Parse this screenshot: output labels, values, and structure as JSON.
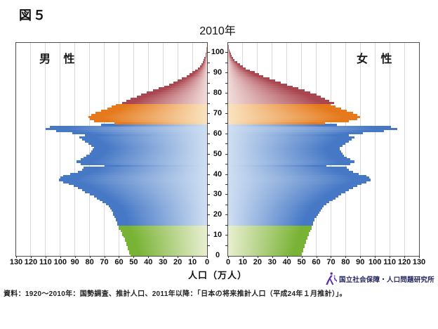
{
  "page": {
    "figure_label": "図５",
    "source_note": "資料：1920～2010年：国勢調査、推計人口、2011年以降：「日本の将来推計人口（平成24年１月推計）」。",
    "logo_text": "国立社会保障・人口問題研究所",
    "logo_icon": "person-logo-icon"
  },
  "colors": {
    "grid": "#d9d9d9",
    "axis": "#4d4d4d",
    "logo_purple": "#5b2da6",
    "logo_text_navy": "#23275f"
  },
  "chart_data": {
    "type": "bar",
    "variant": "population-pyramid-horizontal",
    "title": "2010年",
    "xlabel": "人口（万人）",
    "left_series_label": "男 性",
    "right_series_label": "女 性",
    "x_max": 130,
    "x_ticks_left": [
      130,
      120,
      110,
      100,
      90,
      80,
      70,
      60,
      50,
      40,
      30,
      20,
      10,
      0
    ],
    "x_ticks_right": [
      0,
      10,
      20,
      30,
      40,
      50,
      60,
      70,
      80,
      90,
      100,
      110,
      120,
      130
    ],
    "age_axis": {
      "min": 0,
      "max": 105,
      "tick_step": 5,
      "labels": [
        0,
        10,
        20,
        30,
        40,
        50,
        60,
        70,
        80,
        90,
        100
      ]
    },
    "grid": true,
    "age_bands": [
      {
        "name": "0-14",
        "from": 0,
        "to": 14,
        "dark": "#79b335",
        "pale": "#e9efd1"
      },
      {
        "name": "15-64",
        "from": 15,
        "to": 64,
        "dark": "#4678c6",
        "pale": "#cfdff2"
      },
      {
        "name": "65-74",
        "from": 65,
        "to": 74,
        "dark": "#e5791b",
        "pale": "#fae3c0"
      },
      {
        "name": "75+",
        "from": 75,
        "to": 104,
        "dark": "#aa4650",
        "pale": "#f2dcda"
      }
    ],
    "series": [
      {
        "name": "男性",
        "side": "left",
        "values": [
          52,
          53,
          53,
          54,
          54,
          55,
          55,
          56,
          56,
          57,
          58,
          58,
          59,
          60,
          60,
          61,
          61,
          62,
          62,
          63,
          64,
          64,
          65,
          66,
          67,
          69,
          71,
          73,
          75,
          77,
          80,
          83,
          85,
          88,
          91,
          94,
          98,
          101,
          100,
          98,
          93,
          88,
          85,
          84,
          70,
          86,
          89,
          86,
          84,
          82,
          80,
          79,
          78,
          77,
          79,
          81,
          83,
          85,
          87,
          83,
          92,
          103,
          110,
          107,
          72,
          63,
          77,
          80,
          81,
          79,
          76,
          72,
          68,
          65,
          62,
          58,
          55,
          52,
          48,
          45,
          41,
          37,
          33,
          29,
          26,
          23,
          20,
          17,
          14,
          12,
          10,
          8,
          6,
          5,
          4,
          3,
          2.3,
          1.7,
          1.2,
          0.9,
          0.6,
          0.4,
          0.3,
          0.2,
          0.1
        ]
      },
      {
        "name": "女性",
        "side": "right",
        "values": [
          50,
          50,
          51,
          51,
          52,
          52,
          53,
          53,
          54,
          54,
          55,
          55,
          56,
          57,
          57,
          58,
          58,
          59,
          59,
          60,
          61,
          62,
          63,
          64,
          65,
          67,
          69,
          71,
          73,
          75,
          77,
          80,
          82,
          85,
          88,
          91,
          94,
          97,
          96,
          94,
          89,
          85,
          82,
          81,
          67,
          83,
          86,
          83,
          81,
          79,
          78,
          77,
          76,
          76,
          78,
          80,
          82,
          84,
          86,
          82,
          92,
          106,
          115,
          111,
          74,
          66,
          82,
          88,
          90,
          88,
          85,
          81,
          77,
          73,
          70,
          72,
          69,
          66,
          63,
          60,
          56,
          52,
          48,
          44,
          40,
          36,
          32,
          28,
          24,
          21,
          18,
          15,
          12,
          10,
          8,
          6,
          4.5,
          3.5,
          2.5,
          1.8,
          1.2,
          0.8,
          0.5,
          0.3,
          0.2
        ]
      }
    ]
  }
}
